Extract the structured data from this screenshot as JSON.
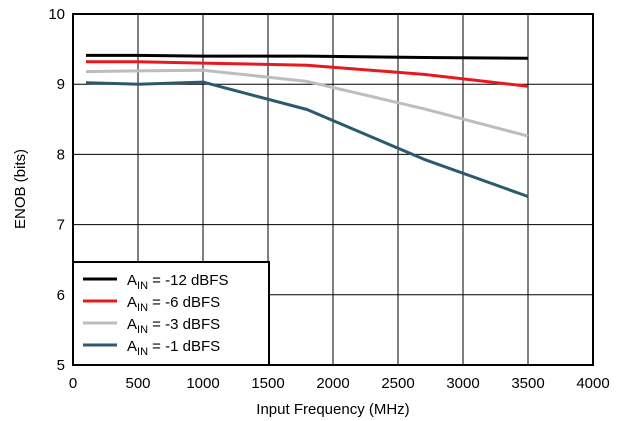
{
  "chart_data": {
    "type": "line",
    "title": "",
    "xlabel": "Input Frequency (MHz)",
    "ylabel": "ENOB (bits)",
    "xlim": [
      0,
      4000
    ],
    "ylim": [
      5,
      10
    ],
    "xticks": [
      0,
      500,
      1000,
      1500,
      2000,
      2500,
      3000,
      3500,
      4000
    ],
    "yticks": [
      5,
      6,
      7,
      8,
      9,
      10
    ],
    "grid": true,
    "legend_position": "bottom-left",
    "series": [
      {
        "name": "A_IN = -12 dBFS",
        "legend_prefix": "A",
        "legend_sub": "IN",
        "legend_suffix": " = -12 dBFS",
        "color": "#000000",
        "x": [
          100,
          500,
          1000,
          1800,
          2700,
          3500
        ],
        "y": [
          9.41,
          9.41,
          9.4,
          9.4,
          9.38,
          9.37
        ]
      },
      {
        "name": "A_IN = -6 dBFS",
        "legend_prefix": "A",
        "legend_sub": "IN",
        "legend_suffix": " = -6 dBFS",
        "color": "#e8191e",
        "x": [
          100,
          500,
          1000,
          1800,
          2700,
          3500
        ],
        "y": [
          9.32,
          9.32,
          9.3,
          9.27,
          9.14,
          8.97
        ]
      },
      {
        "name": "A_IN = -3 dBFS",
        "legend_prefix": "A",
        "legend_sub": "IN",
        "legend_suffix": " = -3 dBFS",
        "color": "#bdbdbd",
        "x": [
          100,
          500,
          1000,
          1800,
          2700,
          3500
        ],
        "y": [
          9.18,
          9.19,
          9.2,
          9.04,
          8.65,
          8.26
        ]
      },
      {
        "name": "A_IN = -1 dBFS",
        "legend_prefix": "A",
        "legend_sub": "IN",
        "legend_suffix": " = -1 dBFS",
        "color": "#2b5a6e",
        "x": [
          100,
          500,
          1000,
          1800,
          2700,
          3500
        ],
        "y": [
          9.02,
          9.0,
          9.03,
          8.64,
          7.93,
          7.4
        ]
      }
    ]
  }
}
